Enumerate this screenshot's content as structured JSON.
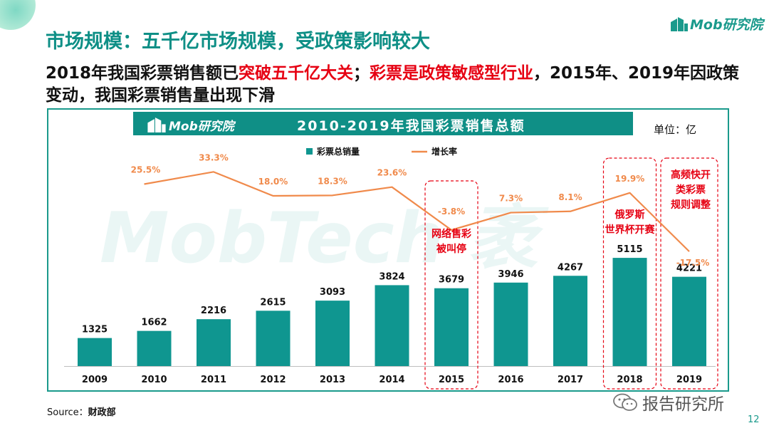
{
  "slide": {
    "title": "市场规模：五千亿市场规模，受政策影响较大",
    "brand": "Mob研究院",
    "subtitle_parts": [
      {
        "text": "2018年我国彩票销售额已",
        "highlight": false
      },
      {
        "text": "突破五千亿大关",
        "highlight": true
      },
      {
        "text": "；",
        "highlight": false
      },
      {
        "text": "彩票是政策敏感型行业",
        "highlight": true
      },
      {
        "text": "，2015年、2019年因政策变动，我国彩票销售量出现下滑",
        "highlight": false
      }
    ],
    "source_label": "Source：",
    "source_value": "财政部",
    "wechat": "报告研究所",
    "page_number": "12",
    "watermark": "MobTech 袤"
  },
  "chart_data": {
    "type": "bar",
    "title": "2010-2019年我国彩票销售总额",
    "header_brand": "Mob研究院",
    "unit": "单位：亿",
    "categories": [
      "2009",
      "2010",
      "2011",
      "2012",
      "2013",
      "2014",
      "2015",
      "2016",
      "2017",
      "2018",
      "2019"
    ],
    "series": [
      {
        "name": "彩票总销量",
        "type": "bar",
        "color": "#0f9690",
        "values": [
          1325,
          1662,
          2216,
          2615,
          3093,
          3824,
          3679,
          3946,
          4267,
          5115,
          4221
        ]
      },
      {
        "name": "增长率",
        "type": "line",
        "color": "#f08a4b",
        "values": [
          null,
          25.5,
          33.3,
          18.0,
          18.3,
          23.6,
          -3.8,
          7.3,
          8.1,
          19.9,
          -17.5
        ],
        "labels": [
          null,
          "25.5%",
          "33.3%",
          "18.0%",
          "18.3%",
          "23.6%",
          "-3.8%",
          "7.3%",
          "8.1%",
          "19.9%",
          "-17.5%"
        ]
      }
    ],
    "legend_position": "top",
    "annotations": [
      {
        "category": "2015",
        "lines": [
          "网络售彩",
          "被叫停"
        ]
      },
      {
        "category": "2018",
        "lines": [
          "俄罗斯",
          "世界杯开赛"
        ]
      },
      {
        "category": "2019",
        "lines": [
          "高频快开",
          "类彩票",
          "规则调整"
        ]
      }
    ],
    "colors": {
      "accent": "#1a9a8c",
      "bar": "#0f9690",
      "line": "#f08a4b",
      "highlight": "#e60012"
    }
  }
}
